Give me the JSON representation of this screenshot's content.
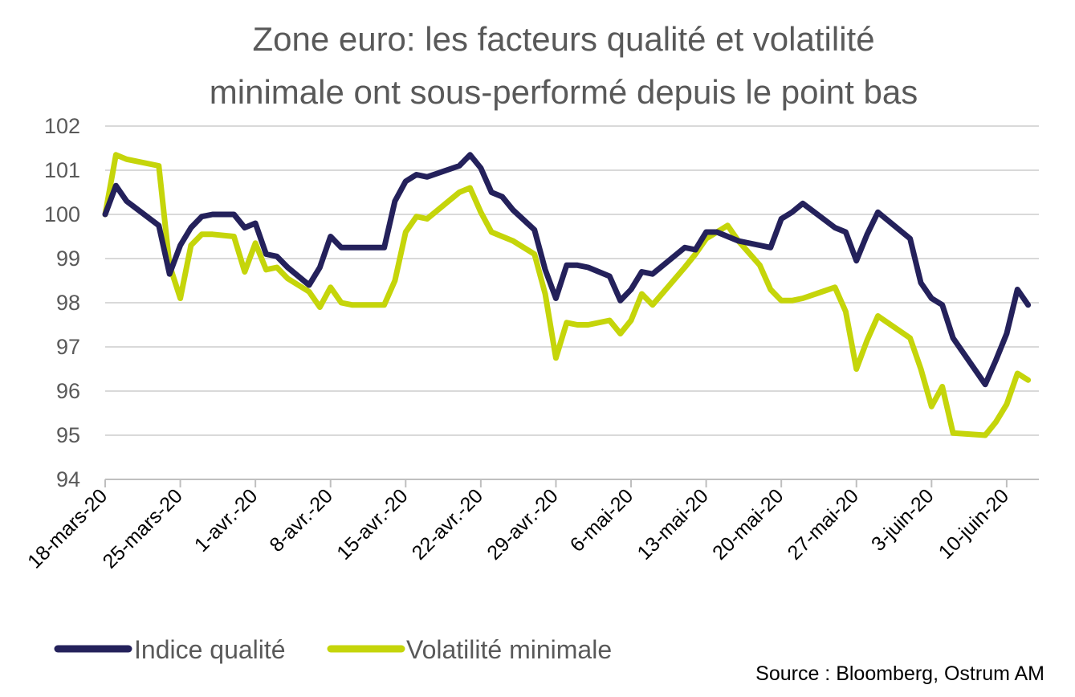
{
  "chart_data": {
    "type": "line",
    "title_lines": [
      "Zone euro: les facteurs qualité et volatilité",
      "minimale ont sous-performé depuis le point bas"
    ],
    "ylim": [
      94,
      102
    ],
    "yticks": [
      "94",
      "95",
      "96",
      "97",
      "98",
      "99",
      "100",
      "101",
      "102"
    ],
    "x_range_days": [
      0,
      87
    ],
    "xtick_labels": [
      "18-mars-20",
      "25-mars-20",
      "1-avr.-20",
      "8-avr.-20",
      "15-avr.-20",
      "22-avr.-20",
      "29-avr.-20",
      "6-mai-20",
      "13-mai-20",
      "20-mai-20",
      "27-mai-20",
      "3-juin-20",
      "10-juin-20"
    ],
    "grid": true,
    "legend_position": "bottom-left",
    "series": [
      {
        "name": "Indice qualité",
        "color": "#24215B",
        "x": [
          0,
          1,
          2,
          5,
          6,
          7,
          8,
          9,
          10,
          12,
          13,
          14,
          15,
          16,
          17,
          19,
          20,
          21,
          22,
          23,
          26,
          27,
          28,
          29,
          30,
          33,
          34,
          35,
          36,
          37,
          38,
          40,
          41,
          42,
          43,
          44,
          45,
          47,
          48,
          49,
          50,
          51,
          54,
          55,
          56,
          57,
          58,
          59,
          61,
          62,
          63,
          64,
          65,
          68,
          69,
          70,
          71,
          72,
          75,
          76,
          77,
          78,
          79,
          82,
          83,
          84,
          85,
          86
        ],
        "values": [
          100.0,
          100.65,
          100.3,
          99.75,
          98.65,
          99.3,
          99.7,
          99.95,
          100.0,
          100.0,
          99.7,
          99.8,
          99.1,
          99.05,
          98.8,
          98.4,
          98.8,
          99.5,
          99.25,
          99.25,
          99.25,
          100.3,
          100.75,
          100.9,
          100.85,
          101.1,
          101.35,
          101.05,
          100.5,
          100.4,
          100.1,
          99.65,
          98.75,
          98.1,
          98.85,
          98.85,
          98.8,
          98.6,
          98.05,
          98.3,
          98.7,
          98.65,
          99.25,
          99.2,
          99.6,
          99.6,
          99.5,
          99.4,
          99.3,
          99.25,
          99.9,
          100.05,
          100.25,
          99.7,
          99.6,
          98.95,
          99.55,
          100.05,
          99.45,
          98.45,
          98.1,
          97.95,
          97.2,
          96.15,
          96.7,
          97.3,
          98.3,
          97.95
        ]
      },
      {
        "name": "Volatilité minimale",
        "color": "#C5D50A",
        "x": [
          0,
          1,
          2,
          5,
          6,
          7,
          8,
          9,
          10,
          12,
          13,
          14,
          15,
          16,
          17,
          19,
          20,
          21,
          22,
          23,
          26,
          27,
          28,
          29,
          30,
          33,
          34,
          35,
          36,
          37,
          38,
          40,
          41,
          42,
          43,
          44,
          45,
          47,
          48,
          49,
          50,
          51,
          54,
          55,
          56,
          57,
          58,
          59,
          61,
          62,
          63,
          64,
          65,
          68,
          69,
          70,
          71,
          72,
          75,
          76,
          77,
          78,
          79,
          82,
          83,
          84,
          85,
          86
        ],
        "values": [
          100.0,
          101.35,
          101.25,
          101.1,
          98.85,
          98.1,
          99.3,
          99.55,
          99.55,
          99.5,
          98.7,
          99.35,
          98.75,
          98.8,
          98.55,
          98.25,
          97.9,
          98.35,
          98.0,
          97.95,
          97.95,
          98.5,
          99.6,
          99.95,
          99.9,
          100.5,
          100.6,
          100.05,
          99.6,
          99.5,
          99.4,
          99.1,
          98.2,
          96.75,
          97.55,
          97.5,
          97.5,
          97.6,
          97.3,
          97.6,
          98.2,
          97.95,
          98.8,
          99.1,
          99.45,
          99.6,
          99.75,
          99.4,
          98.85,
          98.3,
          98.05,
          98.05,
          98.1,
          98.35,
          97.8,
          96.5,
          97.15,
          97.7,
          97.2,
          96.5,
          95.65,
          96.1,
          95.05,
          95.0,
          95.3,
          95.7,
          96.4,
          96.25
        ]
      }
    ],
    "source": "Source : Bloomberg, Ostrum AM"
  }
}
